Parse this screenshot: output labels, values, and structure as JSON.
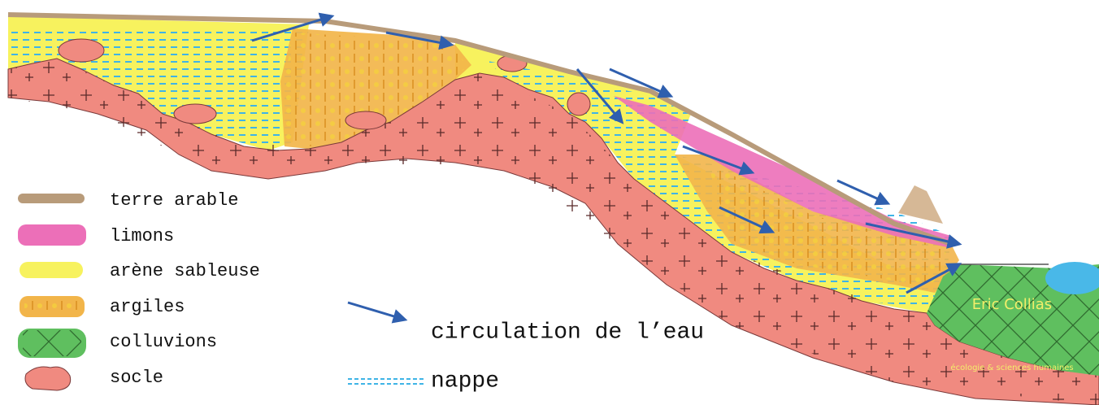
{
  "legend": [
    {
      "label": "terre arable"
    },
    {
      "label": "limons"
    },
    {
      "label": "arène sableuse"
    },
    {
      "label": "argiles"
    },
    {
      "label": "colluvions"
    },
    {
      "label": "socle"
    }
  ],
  "water_legend": {
    "circulation": "circulation de l’eau",
    "nappe": "nappe"
  },
  "watermark": {
    "name": "Eric Collias",
    "subtitle": "écologie & sciences humaines"
  }
}
